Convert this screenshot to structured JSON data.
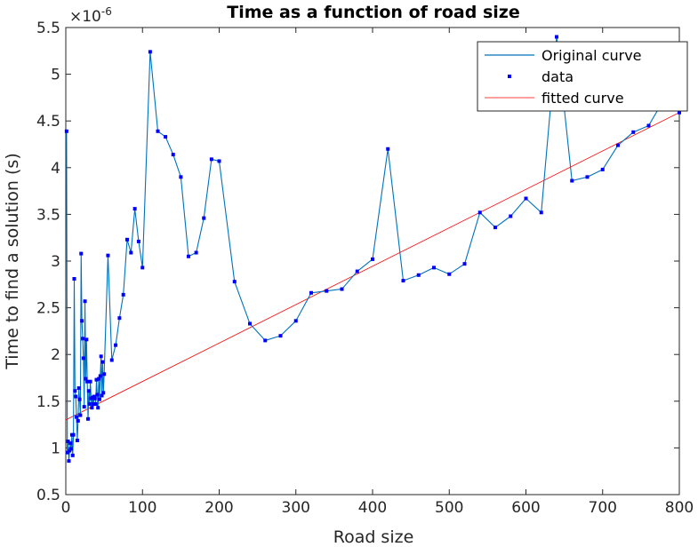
{
  "chart_data": {
    "type": "line",
    "title": "Time as a function of road size",
    "xlabel": "Road size",
    "ylabel": "Time to find a solution (s)",
    "y_exponent_label": "×10",
    "y_exponent_power": "-6",
    "xlim": [
      0,
      800
    ],
    "ylim": [
      0.5,
      5.5
    ],
    "x_ticks": [
      0,
      100,
      200,
      300,
      400,
      500,
      600,
      700,
      800
    ],
    "y_ticks": [
      0.5,
      1,
      1.5,
      2,
      2.5,
      3,
      3.5,
      4,
      4.5,
      5,
      5.5
    ],
    "x_tick_labels": [
      "0",
      "100",
      "200",
      "300",
      "400",
      "500",
      "600",
      "700",
      "800"
    ],
    "y_tick_labels": [
      "0.5",
      "1",
      "1.5",
      "2",
      "2.5",
      "3",
      "3.5",
      "4",
      "4.5",
      "5",
      "5.5"
    ],
    "grid": false,
    "legend_position": "top-right",
    "colors": {
      "original": "#0072bd",
      "data": "#0000ff",
      "fitted": "#ff0000"
    },
    "series": [
      {
        "name": "Original curve",
        "style": "line",
        "x": [
          1,
          2,
          3,
          4,
          5,
          6,
          7,
          8,
          9,
          10,
          11,
          12,
          13,
          14,
          15,
          16,
          17,
          18,
          19,
          20,
          21,
          22,
          23,
          24,
          25,
          26,
          27,
          28,
          29,
          30,
          31,
          32,
          33,
          34,
          35,
          36,
          37,
          38,
          39,
          40,
          41,
          42,
          43,
          44,
          45,
          46,
          47,
          48,
          49,
          50,
          55,
          60,
          65,
          70,
          75,
          80,
          85,
          90,
          95,
          100,
          110,
          120,
          130,
          140,
          150,
          160,
          170,
          180,
          190,
          200,
          220,
          240,
          260,
          280,
          300,
          320,
          340,
          360,
          380,
          400,
          420,
          440,
          460,
          480,
          500,
          520,
          540,
          560,
          580,
          600,
          620,
          640,
          660,
          680,
          700,
          720,
          740,
          760,
          780,
          800
        ],
        "values": [
          4.39,
          0.95,
          1.07,
          0.86,
          0.97,
          1.05,
          0.99,
          1.14,
          0.92,
          1.14,
          2.81,
          1.61,
          1.55,
          1.33,
          1.08,
          1.29,
          1.64,
          1.52,
          1.35,
          3.08,
          2.36,
          2.17,
          1.96,
          1.44,
          2.57,
          1.74,
          2.16,
          1.71,
          1.31,
          1.61,
          1.47,
          1.71,
          1.53,
          1.43,
          1.54,
          1.47,
          1.55,
          1.53,
          1.47,
          1.73,
          1.57,
          1.43,
          1.74,
          1.52,
          1.77,
          1.98,
          1.56,
          1.92,
          1.59,
          1.79,
          3.06,
          1.94,
          2.1,
          2.39,
          2.64,
          3.23,
          3.09,
          3.56,
          3.21,
          2.93,
          5.24,
          4.39,
          4.33,
          4.14,
          3.9,
          3.05,
          3.09,
          3.46,
          4.09,
          4.07,
          2.78,
          2.33,
          2.15,
          2.2,
          2.36,
          2.66,
          2.68,
          2.7,
          2.89,
          3.02,
          4.2,
          2.79,
          2.85,
          2.93,
          2.86,
          2.97,
          3.52,
          3.36,
          3.48,
          3.67,
          3.52,
          5.4,
          3.86,
          3.9,
          3.98,
          4.24,
          4.38,
          4.45,
          4.73,
          4.59
        ]
      },
      {
        "name": "data",
        "style": "markers"
      },
      {
        "name": "fitted curve",
        "style": "line",
        "x": [
          0,
          800
        ],
        "values": [
          1.3,
          4.59
        ]
      }
    ]
  }
}
